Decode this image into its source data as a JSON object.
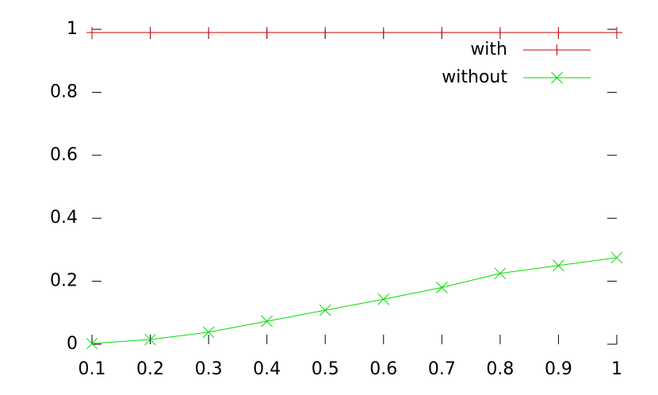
{
  "chart_data": {
    "type": "line",
    "x": [
      0.1,
      0.2,
      0.3,
      0.4,
      0.5,
      0.6,
      0.7,
      0.8,
      0.9,
      1
    ],
    "series": [
      {
        "name": "with",
        "color": "#cc0000",
        "marker": "plus",
        "values": [
          0.99,
          0.99,
          0.99,
          0.99,
          0.99,
          0.99,
          0.99,
          0.99,
          0.99,
          0.99
        ]
      },
      {
        "name": "without",
        "color": "#00dd00",
        "marker": "cross",
        "values": [
          0.002,
          0.015,
          0.038,
          0.073,
          0.108,
          0.143,
          0.18,
          0.225,
          0.25,
          0.275
        ]
      }
    ],
    "xlim": [
      0.1,
      1
    ],
    "xticks": [
      0.1,
      0.2,
      0.3,
      0.4,
      0.5,
      0.6,
      0.7,
      0.8,
      0.9,
      1
    ],
    "ylim": [
      0,
      1
    ],
    "yticks": [
      0,
      0.2,
      0.4,
      0.6,
      0.8,
      1
    ],
    "legend": "top-right"
  }
}
